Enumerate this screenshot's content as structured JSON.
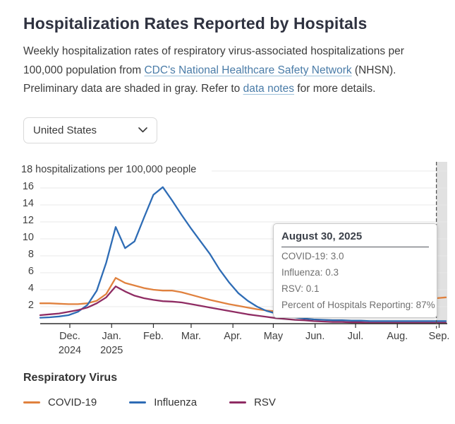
{
  "header": {
    "title": "Hospitalization Rates Reported by Hospitals"
  },
  "description": {
    "part1": "Weekly hospitalization rates of respiratory virus-associated hospitalizations per 100,000 population from ",
    "link1": "CDC's National Healthcare Safety Network",
    "part2": " (NHSN). Preliminary data are shaded in gray. Refer to ",
    "link2": "data notes",
    "part3": " for more details."
  },
  "region_dropdown": {
    "selected": "United States"
  },
  "tooltip": {
    "date": "August 30, 2025",
    "rows": [
      "COVID-19: 3.0",
      "Influenza: 0.3",
      "RSV: 0.1",
      "Percent of Hospitals Reporting: 87%"
    ]
  },
  "legend": {
    "title": "Respiratory Virus",
    "items": [
      {
        "label": "COVID-19",
        "color": "#e0813e"
      },
      {
        "label": "Influenza",
        "color": "#2e6cb5"
      },
      {
        "label": "RSV",
        "color": "#8f2c63"
      }
    ]
  },
  "chart_data": {
    "type": "line",
    "title": "Hospitalization Rates Reported by Hospitals",
    "y_top_label": "18 hospitalizations per 100,000 people",
    "ylabel": "hospitalizations per 100,000 people",
    "ylim": [
      0,
      18
    ],
    "y_ticks": [
      2,
      4,
      6,
      8,
      10,
      12,
      14,
      16
    ],
    "grid": true,
    "x": [
      "Nov 9, 2024",
      "Nov 16, 2024",
      "Nov 23, 2024",
      "Nov 30, 2024",
      "Dec 7, 2024",
      "Dec 14, 2024",
      "Dec 21, 2024",
      "Dec 28, 2024",
      "Jan 4, 2025",
      "Jan 11, 2025",
      "Jan 18, 2025",
      "Jan 25, 2025",
      "Feb 1, 2025",
      "Feb 8, 2025",
      "Feb 15, 2025",
      "Feb 22, 2025",
      "Mar 1, 2025",
      "Mar 8, 2025",
      "Mar 15, 2025",
      "Mar 22, 2025",
      "Mar 29, 2025",
      "Apr 5, 2025",
      "Apr 12, 2025",
      "Apr 19, 2025",
      "Apr 26, 2025",
      "May 3, 2025",
      "May 10, 2025",
      "May 17, 2025",
      "May 24, 2025",
      "May 31, 2025",
      "Jun 7, 2025",
      "Jun 14, 2025",
      "Jun 21, 2025",
      "Jun 28, 2025",
      "Jul 5, 2025",
      "Jul 12, 2025",
      "Jul 19, 2025",
      "Jul 26, 2025",
      "Aug 2, 2025",
      "Aug 9, 2025",
      "Aug 16, 2025",
      "Aug 23, 2025",
      "Aug 30, 2025",
      "Sep 6, 2025"
    ],
    "x_ticks": [
      {
        "label": "Dec.",
        "sub": "2024",
        "pos": 3.14
      },
      {
        "label": "Jan.",
        "sub": "2025",
        "pos": 7.57
      },
      {
        "label": "Feb.",
        "pos": 12
      },
      {
        "label": "Mar.",
        "pos": 16
      },
      {
        "label": "Apr.",
        "pos": 20.43
      },
      {
        "label": "May",
        "pos": 24.71
      },
      {
        "label": "Jun.",
        "pos": 29.14
      },
      {
        "label": "Jul.",
        "pos": 33.43
      },
      {
        "label": "Aug.",
        "pos": 37.86
      },
      {
        "label": "Sep.",
        "pos": 42.29
      }
    ],
    "series": [
      {
        "name": "COVID-19",
        "color": "#e0813e",
        "values": [
          2.4,
          2.4,
          2.35,
          2.3,
          2.3,
          2.4,
          2.7,
          3.5,
          5.4,
          4.8,
          4.5,
          4.2,
          4.0,
          3.9,
          3.9,
          3.7,
          3.4,
          3.1,
          2.8,
          2.55,
          2.3,
          2.1,
          1.9,
          1.7,
          1.55,
          1.45,
          1.35,
          1.25,
          1.2,
          1.15,
          1.1,
          1.1,
          1.1,
          1.1,
          1.15,
          1.25,
          1.4,
          1.6,
          1.85,
          2.15,
          2.45,
          2.75,
          3.0,
          3.1
        ]
      },
      {
        "name": "Influenza",
        "color": "#2e6cb5",
        "values": [
          0.7,
          0.75,
          0.85,
          1.0,
          1.4,
          2.2,
          3.9,
          7.2,
          11.4,
          8.9,
          9.7,
          12.5,
          15.2,
          16.1,
          14.5,
          12.8,
          11.2,
          9.7,
          8.2,
          6.4,
          4.9,
          3.6,
          2.7,
          2.0,
          1.5,
          1.2,
          0.9,
          0.75,
          0.6,
          0.5,
          0.45,
          0.4,
          0.4,
          0.35,
          0.35,
          0.3,
          0.3,
          0.3,
          0.3,
          0.3,
          0.3,
          0.3,
          0.3,
          0.3
        ]
      },
      {
        "name": "RSV",
        "color": "#8f2c63",
        "values": [
          1.0,
          1.1,
          1.2,
          1.4,
          1.6,
          1.9,
          2.4,
          3.1,
          4.4,
          3.8,
          3.3,
          3.0,
          2.8,
          2.65,
          2.6,
          2.5,
          2.3,
          2.1,
          1.9,
          1.7,
          1.5,
          1.3,
          1.1,
          0.95,
          0.8,
          0.65,
          0.55,
          0.45,
          0.4,
          0.3,
          0.25,
          0.2,
          0.2,
          0.15,
          0.15,
          0.1,
          0.1,
          0.1,
          0.1,
          0.1,
          0.1,
          0.1,
          0.1,
          0.1
        ]
      }
    ],
    "preliminary_start_index": 42,
    "preliminary_band_color": "#e1e1e1",
    "grid_color": "#e8e8e8",
    "axis_color": "#2e2e2e",
    "dashed_line_color": "#555555",
    "legend_position": "bottom"
  }
}
